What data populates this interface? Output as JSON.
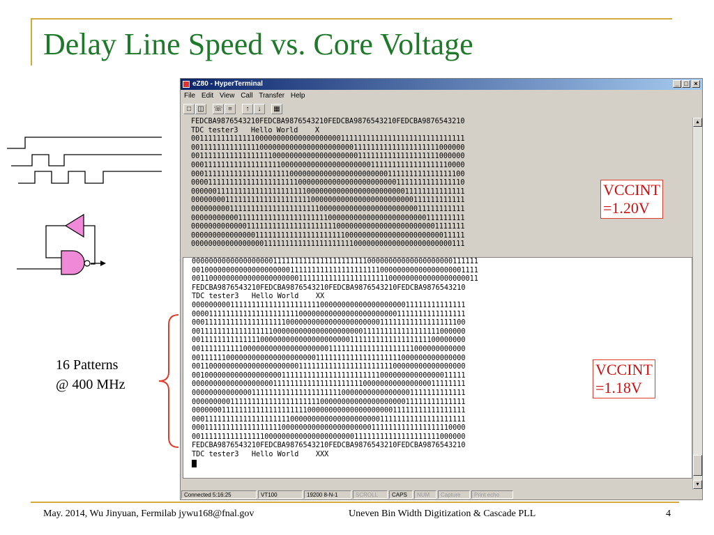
{
  "slide": {
    "title": "Delay Line Speed vs. Core Voltage",
    "footer_left": "May. 2014, Wu Jinyuan, Fermilab jywu168@fnal.gov",
    "footer_center": "Uneven Bin Width Digitization & Cascade PLL",
    "page_number": "4",
    "patterns_label": [
      "16 Patterns",
      "@ 400 MHz"
    ],
    "vccint_top": [
      "VCCINT",
      "=1.20V"
    ],
    "vccint_bottom": [
      "VCCINT",
      "=1.18V"
    ]
  },
  "colors": {
    "title": "#1e7a2a",
    "frame": "#d4a93a",
    "annotation": "#d01010",
    "gate_fill": "#f08ad8"
  },
  "window": {
    "title": "eZ80 - HyperTerminal",
    "controls": [
      "_",
      "□",
      "×"
    ],
    "menu": [
      "File",
      "Edit",
      "View",
      "Call",
      "Transfer",
      "Help"
    ],
    "toolbar_icons": [
      "new-file-icon",
      "open-folder-icon",
      "phone-icon",
      "disconnect-icon",
      "send-icon",
      "receive-icon",
      "properties-icon"
    ]
  },
  "terminal_top": {
    "lines": [
      "FEDCBA9876543210FEDCBA9876543210FEDCBA9876543210FEDCBA9876543210",
      "TDC tester3   Hello World    X",
      "0011111111111110000000000000000000011111111111111111111111111111",
      "0011111111111111000000000000000000000011111111111111111111000000",
      "0011111111111111111000000000000000000001111111111111111111000000",
      "0001111111111111111110000000000000000000001111111111111111110000",
      "0001111111111111111111100000000000000000000000111111111111111100",
      "0000111111111111111111111000000000000000000000001111111111111110",
      "0000001111111111111111111110000000000000000000000011111111111111",
      "0000000011111111111111111111000000000000000000000000111111111111",
      "0000000001111111111111111111110000000000000000000000011111111111",
      "0000000000011111111111111111111100000000000000000000000111111111",
      "0000000000000111111111111111111111000000000000000000000001111111",
      "0000000000000001111111111111111111110000000000000000000000011111",
      "0000000000000000011111111111111111111100000000000000000000000111"
    ]
  },
  "terminal_bottom": {
    "lines": [
      "0000000000000000000111111111111111111111100000000000000000000111111",
      "0010000000000000000000011111111111111111111100000000000000000001111",
      "0011000000000000000000000111111111111111111111000000000000000000011",
      "FEDCBA9876543210FEDCBA9876543210FEDCBA9876543210FEDCBA9876543210",
      "TDC tester3   Hello World    XX",
      "0000000001111111111111111111110000000000000000000011111111111111",
      "0000111111111111111111111000000000000000000000001111111111111111",
      "0001111111111111111111000000000000000000000011111111111111111100",
      "0011111111111111111000000000000000000000111111111111111111000000",
      "0011111111111111000000000000000000000111111111111111111100000000",
      "0011111111110000000000000000000011111111111111111111000000000000",
      "0011111100000000000000000000011111111111111111111000000000000000",
      "0011000000000000000000000111111111111111111111100000000000000000",
      "0010000000000000000001111111111111111111111100000000000000011111",
      "0000000000000000000111111111111111111111000000000000000011111111",
      "0000000000000011111111111111111111100000000000000001111111111111",
      "0000000001111111111111111111110000000000000000000011111111111111",
      "0000000111111111111111111110000000000000000000011111111111111111",
      "0001111111111111111111100000000000000000000011111111111111111111",
      "0001111111111111111110000000000000000000001111111111111111110000",
      "0011111111111111100000000000000000000011111111111111111111000000",
      "FEDCBA9876543210FEDCBA9876543210FEDCBA9876543210FEDCBA9876543210",
      "TDC tester3   Hello World    XXX"
    ]
  },
  "statusbar": {
    "cells": [
      "Connected 5:16:25",
      "VT100",
      "19200 8-N-1",
      "SCROLL",
      "CAPS",
      "NUM",
      "Capture",
      "Print echo"
    ]
  }
}
